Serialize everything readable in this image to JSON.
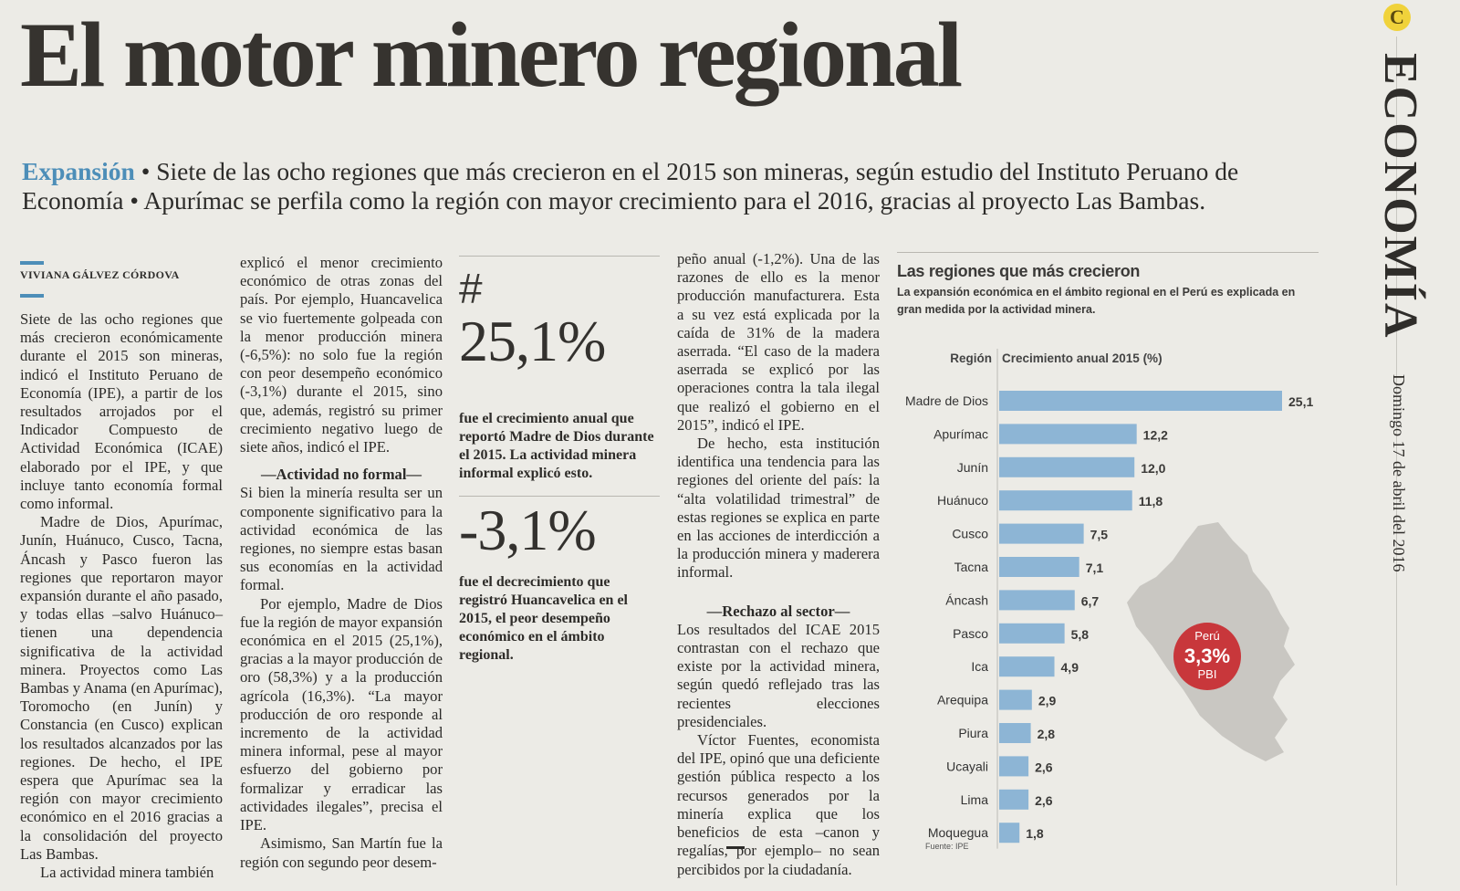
{
  "headline": "El motor minero regional",
  "lede": {
    "kicker": "Expansión",
    "text": " • Siete de las ocho regiones que más crecieron en el 2015 son mineras, según estudio del Instituto Peruano de Economía • Apurímac se perfila como la región con mayor crecimiento para el 2016, gracias al proyecto Las Bambas."
  },
  "section": {
    "name": "ECONOMÍA",
    "date": "Domingo 17 de abril del 2016",
    "logo": "C"
  },
  "byline": "VIVIANA GÁLVEZ CÓRDOVA",
  "col1": {
    "p1": "Siete de las ocho regiones que más crecieron económicamente durante el 2015 son mineras, indicó el Instituto Peruano de Economía (IPE), a partir de los resultados arrojados por el Indicador Compuesto de Actividad Económica (ICAE) elaborado por el IPE, y que incluye tanto economía formal como informal.",
    "p2": "Madre de Dios, Apurímac, Junín, Huánuco, Cusco, Tacna, Áncash y Pasco fueron las regiones que reportaron mayor expansión durante el año pasado, y todas ellas –salvo Huánuco– tienen una dependencia significativa de la actividad minera. Proyectos como Las Bambas y Anama (en Apurímac), Toromocho (en Junín) y Constancia (en Cusco) explican los resultados alcanzados por las regiones. De hecho, el IPE espera que Apurímac sea la región con mayor crecimiento económico en el 2016 gracias a la consolidación del proyecto Las Bambas.",
    "p3": "La actividad minera también"
  },
  "col2": {
    "p1": "explicó el menor crecimiento económico de otras zonas del país. Por ejemplo, Huancavelica se vio fuertemente golpeada con la menor producción minera (-6,5%): no solo fue la región con peor desempeño económico (-3,1%) durante el 2015, sino que, además, registró su primer crecimiento negativo luego de siete años, indicó el IPE.",
    "subhead": "—Actividad no formal—",
    "p2": "Si bien la minería resulta ser un componente significativo para la actividad económica de las regiones, no siempre estas basan sus economías en la actividad formal.",
    "p3": "Por ejemplo, Madre de Dios fue la región de mayor expansión económica en el 2015 (25,1%), gracias a la mayor producción de oro (58,3%) y a la producción agrícola (16,3%). “La mayor producción de oro responde al incremento de la actividad minera informal, pese al mayor esfuerzo del gobierno por formalizar y erradicar las actividades ilegales”, precisa el IPE.",
    "p4": "Asimismo, San Martín fue la región con segundo peor desem-"
  },
  "stats": {
    "hash": "#",
    "stat1_value": "25,1%",
    "stat1_text": "fue el crecimiento anual que reportó Madre de Dios durante el 2015. La actividad minera informal explicó esto.",
    "stat2_value": "-3,1%",
    "stat2_text": "fue el decrecimiento que registró Huancavelica en el 2015, el peor desempeño económico en el ámbito regional."
  },
  "col4": {
    "p1": "peño anual (-1,2%). Una de las razones de ello es la menor producción manufacturera. Esta a su vez está explicada por la caída de 31% de la madera aserrada. “El caso de la madera aserrada se explicó por las operaciones contra la tala ilegal que realizó el gobierno en el 2015”, indicó el IPE.",
    "p2": "De hecho, esta institución identifica una tendencia para las regiones del oriente del país: la “alta volatilidad trimestral” de estas regiones se explica en parte en las acciones de interdicción a la producción minera y maderera informal.",
    "subhead": "—Rechazo al sector—",
    "p3": "Los resultados del ICAE 2015 contrastan con el rechazo que existe por la actividad minera, según quedó reflejado tras las recientes elecciones presidenciales.",
    "p4": "Víctor Fuentes, economista del IPE, opinó que una deficiente gestión pública respecto a los recursos generados por la minería explica que los beneficios de esta –canon y regalías, por ejemplo– no sean percibidos por la ciudadanía."
  },
  "infographic": {
    "title": "Las regiones que más crecieron",
    "subtitle": "La expansión económica en el ámbito regional en el Perú es explicada en gran medida por la actividad minera.",
    "source": "Fuente: IPE",
    "peru_badge": {
      "line1": "Perú",
      "value": "3,3%",
      "line3": "PBI"
    },
    "colors": {
      "bar": "#8db5d5",
      "badge": "#c8373b",
      "map": "#c9c7c2"
    }
  },
  "chart_data": {
    "type": "bar",
    "orientation": "horizontal",
    "xlabel": "Región",
    "ylabel": "Crecimiento anual 2015 (%)",
    "categories": [
      "Madre de Dios",
      "Apurímac",
      "Junín",
      "Huánuco",
      "Cusco",
      "Tacna",
      "Áncash",
      "Pasco",
      "Ica",
      "Arequipa",
      "Piura",
      "Ucayali",
      "Lima",
      "Moquegua"
    ],
    "values": [
      25.1,
      12.2,
      12.0,
      11.8,
      7.5,
      7.1,
      6.7,
      5.8,
      4.9,
      2.9,
      2.8,
      2.6,
      2.6,
      1.8
    ],
    "value_labels": [
      "25,1",
      "12,2",
      "12,0",
      "11,8",
      "7,5",
      "7,1",
      "6,7",
      "5,8",
      "4,9",
      "2,9",
      "2,8",
      "2,6",
      "2,6",
      "1,8"
    ],
    "xlim": [
      0,
      25.1
    ]
  }
}
